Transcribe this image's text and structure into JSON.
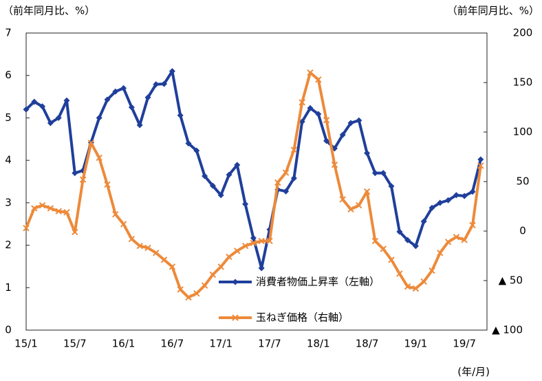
{
  "chart_data": {
    "type": "line",
    "y_label": "（前年同月比、%）",
    "y2_label": "（前年同月比、%）",
    "x_label": "(年/月)",
    "categories": [
      "15/1",
      null,
      null,
      null,
      null,
      null,
      "15/7",
      null,
      null,
      null,
      null,
      null,
      "16/1",
      null,
      null,
      null,
      null,
      null,
      "16/7",
      null,
      null,
      null,
      null,
      null,
      "17/1",
      null,
      null,
      null,
      null,
      null,
      "17/7",
      null,
      null,
      null,
      null,
      null,
      "18/1",
      null,
      null,
      null,
      null,
      null,
      "18/7",
      null,
      null,
      null,
      null,
      null,
      "19/1",
      null,
      null,
      null,
      null,
      null,
      "19/7",
      null,
      null
    ],
    "series": [
      {
        "name": "消費者物価上昇率（左軸）",
        "color": "#1f3f9b",
        "marker": "diamond",
        "values": [
          5.2,
          5.38,
          5.27,
          4.88,
          5.0,
          5.41,
          3.7,
          3.76,
          4.42,
          5.0,
          5.43,
          5.62,
          5.7,
          5.25,
          4.83,
          5.48,
          5.79,
          5.8,
          6.1,
          5.06,
          4.4,
          4.23,
          3.63,
          3.4,
          3.18,
          3.66,
          3.89,
          2.97,
          2.17,
          1.46,
          2.37,
          3.31,
          3.27,
          3.58,
          4.91,
          5.23,
          5.09,
          4.46,
          4.28,
          4.6,
          4.88,
          4.94,
          4.17,
          3.7,
          3.7,
          3.39,
          2.32,
          2.12,
          1.98,
          2.56,
          2.88,
          3.0,
          3.06,
          3.18,
          3.16,
          3.26,
          4.02
        ]
      },
      {
        "name": "玉ねぎ価格（右軸）",
        "color": "#ed8a3a",
        "marker": "x",
        "axis": "y2",
        "values": [
          3,
          23,
          26,
          23,
          20,
          19,
          -1,
          52,
          89,
          74,
          47,
          17,
          7,
          -8,
          -15,
          -17,
          -22,
          -29,
          -36,
          -59,
          -67,
          -63,
          -55,
          -44,
          -36,
          -26,
          -20,
          -15,
          -12,
          -10,
          -10,
          49,
          59,
          82,
          130,
          160,
          153,
          112,
          67,
          32,
          22,
          26,
          40,
          -10,
          -18,
          -29,
          -43,
          -56,
          -58,
          -51,
          -40,
          -22,
          -11,
          -6,
          -9,
          6,
          66
        ]
      }
    ],
    "ylim": [
      0,
      7
    ],
    "yticks": [
      0,
      1,
      2,
      3,
      4,
      5,
      6,
      7
    ],
    "y2lim": [
      -100,
      200
    ],
    "y2ticks": [
      {
        "value": -100,
        "label": "▲ 100"
      },
      {
        "value": -50,
        "label": "▲ 50"
      },
      0,
      50,
      100,
      150,
      200
    ],
    "grid": false
  }
}
